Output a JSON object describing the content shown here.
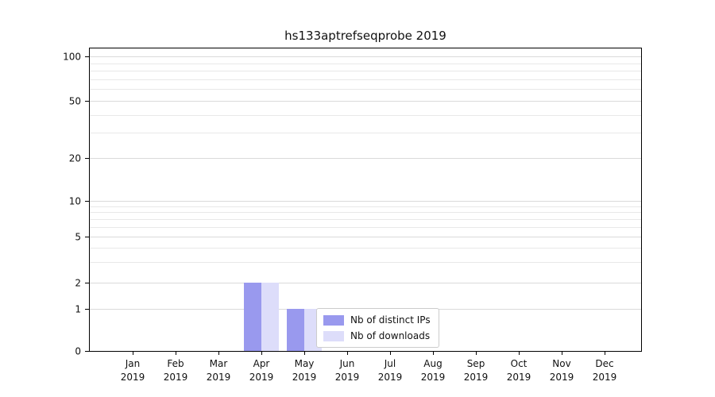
{
  "chart_data": {
    "type": "bar",
    "title": "hs133aptrefseqprobe 2019",
    "categories": [
      "Jan",
      "Feb",
      "Mar",
      "Apr",
      "May",
      "Jun",
      "Jul",
      "Aug",
      "Sep",
      "Oct",
      "Nov",
      "Dec"
    ],
    "year_label": "2019",
    "series": [
      {
        "name": "Nb of distinct IPs",
        "color": "#9999ee",
        "values": [
          0,
          0,
          0,
          2,
          1,
          0,
          0,
          0,
          0,
          0,
          0,
          0
        ]
      },
      {
        "name": "Nb of downloads",
        "color": "#ddddfa",
        "values": [
          0,
          0,
          0,
          2,
          1,
          0,
          0,
          0,
          0,
          0,
          0,
          0
        ]
      }
    ],
    "y_ticks": [
      0,
      1,
      2,
      5,
      10,
      20,
      50,
      100
    ],
    "y_scale": "log-like with 0 baseline",
    "ylim": [
      0,
      115
    ],
    "grid": true,
    "legend_position": "bottom-center"
  }
}
